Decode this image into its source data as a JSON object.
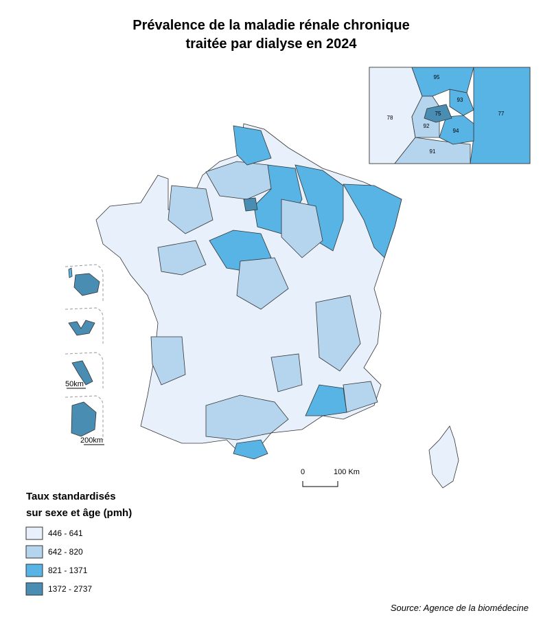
{
  "title": [
    "Prévalence de la maladie rénale chronique",
    "traitée par dialyse en 2024"
  ],
  "inset": {
    "labels": [
      "95",
      "93",
      "75",
      "92",
      "94",
      "91",
      "78",
      "77"
    ]
  },
  "scales": {
    "main": [
      "0",
      "100 Km"
    ],
    "dom_small": "50km",
    "dom_large": "200km"
  },
  "legend": {
    "title": [
      "Taux standardisés",
      "sur sexe et âge (pmh)"
    ],
    "items": [
      {
        "label": "446 - 641",
        "color": "#e8f1fb"
      },
      {
        "label": "642 - 820",
        "color": "#b5d4ee"
      },
      {
        "label": "821 - 1371",
        "color": "#59b4e6"
      },
      {
        "label": "1372 - 2737",
        "color": "#4a8db3"
      }
    ]
  },
  "source": "Source: Agence de la biomédecine"
}
